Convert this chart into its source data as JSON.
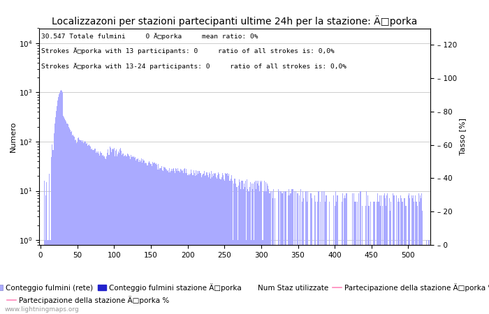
{
  "title": "Localizzazoni per stazioni partecipanti ultime 24h per la stazione: Ä□porka",
  "annotation_lines": [
    "30.547 Totale fulmini     0 Ä□porka     mean ratio: 0%",
    "Strokes Ä□porka with 13 participants: 0     ratio of all strokes is: 0,0%",
    "Strokes Ä□porka with 13-24 participants: 0     ratio of all strokes is: 0,0%"
  ],
  "xlabel": "",
  "ylabel_left": "Numero",
  "ylabel_right": "Tasso [%]",
  "xlim": [
    -2,
    530
  ],
  "ylim_right": [
    0,
    130
  ],
  "bar_color": "#aaaaff",
  "station_bar_color": "#2222cc",
  "line_color": "#ff88bb",
  "watermark": "www.lightningmaps.org",
  "legend_entries": [
    "Conteggio fulmini (rete)",
    "Conteggio fulmini stazione Ä□porka",
    "Num Staz utilizzate",
    "Partecipazione della stazione Ä□porka %"
  ],
  "grid_color": "#bbbbbb",
  "title_fontsize": 10,
  "annotation_fontsize": 6.8,
  "axis_label_fontsize": 8,
  "tick_fontsize": 7.5,
  "legend_fontsize": 7.5
}
